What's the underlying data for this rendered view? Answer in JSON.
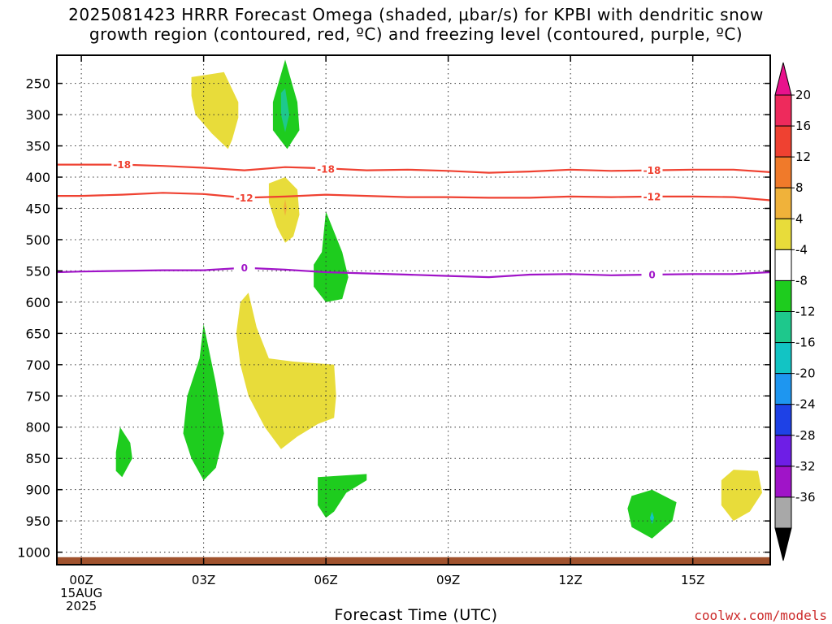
{
  "title": {
    "line1": "2025081423 HRRR Forecast Omega (shaded, μbar/s) for KPBI with dendritic snow",
    "line2": "growth region (contoured, red, ºC) and freezing level (contoured, purple, ºC)"
  },
  "chart_data": {
    "type": "contour",
    "xlabel": "Forecast Time (UTC)",
    "ylabel": "",
    "x_unit": "forecast hour from 2025-08-15 00Z",
    "xlim": [
      -0.6,
      16.9
    ],
    "y_axis": "pressure (hPa), inverted",
    "ylim": [
      1020,
      205
    ],
    "x_ticks": [
      {
        "x": 0,
        "lines": [
          "00Z",
          "15AUG",
          "2025"
        ]
      },
      {
        "x": 3,
        "lines": [
          "03Z"
        ]
      },
      {
        "x": 6,
        "lines": [
          "06Z"
        ]
      },
      {
        "x": 9,
        "lines": [
          "09Z"
        ]
      },
      {
        "x": 12,
        "lines": [
          "12Z"
        ]
      },
      {
        "x": 15,
        "lines": [
          "15Z"
        ]
      }
    ],
    "y_ticks": [
      250,
      300,
      350,
      400,
      450,
      500,
      550,
      600,
      650,
      700,
      750,
      800,
      850,
      900,
      950,
      1000
    ],
    "grid": true,
    "colorbar": {
      "labels": [
        "20",
        "16",
        "12",
        "8",
        "4",
        "-4",
        "-8",
        "-12",
        "-16",
        "-20",
        "-24",
        "-28",
        "-32",
        "-36"
      ],
      "colors": [
        "#ee2a5c",
        "#ef4131",
        "#f07a2a",
        "#f0b23a",
        "#e8dc3a",
        "#ffffff",
        "#1ecc1e",
        "#1ec88c",
        "#12c4c4",
        "#1e96f0",
        "#1e41e6",
        "#6e1ee6",
        "#a014c8",
        "#a8a8a8"
      ],
      "top_triangle_color": "#e8128c",
      "bottom_triangle_color": "#000000"
    },
    "shaded_regions": [
      {
        "color": "#e8dc3a",
        "points": [
          [
            2.7,
            240
          ],
          [
            3.5,
            232
          ],
          [
            3.85,
            280
          ],
          [
            3.85,
            305
          ],
          [
            3.7,
            340
          ],
          [
            3.6,
            355
          ],
          [
            3.2,
            330
          ],
          [
            2.8,
            300
          ],
          [
            2.7,
            270
          ]
        ]
      },
      {
        "color": "#1ecc1e",
        "points": [
          [
            5.0,
            212
          ],
          [
            5.3,
            280
          ],
          [
            5.35,
            325
          ],
          [
            5.05,
            355
          ],
          [
            4.7,
            325
          ],
          [
            4.7,
            280
          ]
        ]
      },
      {
        "color": "#1ec88c",
        "points": [
          [
            5.0,
            258
          ],
          [
            5.1,
            300
          ],
          [
            5.0,
            328
          ],
          [
            4.9,
            300
          ],
          [
            4.9,
            265
          ]
        ]
      },
      {
        "color": "#e8dc3a",
        "points": [
          [
            4.6,
            410
          ],
          [
            5.0,
            400
          ],
          [
            5.3,
            420
          ],
          [
            5.35,
            460
          ],
          [
            5.2,
            495
          ],
          [
            5.0,
            505
          ],
          [
            4.8,
            480
          ],
          [
            4.6,
            440
          ]
        ]
      },
      {
        "color": "#f0b23a",
        "points": [
          [
            5.0,
            435
          ],
          [
            5.04,
            450
          ],
          [
            5.0,
            462
          ],
          [
            4.96,
            450
          ]
        ]
      },
      {
        "color": "#1ecc1e",
        "points": [
          [
            6.0,
            455
          ],
          [
            6.4,
            520
          ],
          [
            6.55,
            560
          ],
          [
            6.4,
            595
          ],
          [
            6.0,
            600
          ],
          [
            5.7,
            575
          ],
          [
            5.7,
            540
          ],
          [
            5.9,
            520
          ]
        ]
      },
      {
        "color": "#e8dc3a",
        "points": [
          [
            3.9,
            600
          ],
          [
            4.1,
            585
          ],
          [
            4.3,
            640
          ],
          [
            4.6,
            690
          ],
          [
            5.2,
            695
          ],
          [
            6.2,
            700
          ],
          [
            6.25,
            750
          ],
          [
            6.2,
            785
          ],
          [
            5.8,
            795
          ],
          [
            5.3,
            815
          ],
          [
            4.9,
            835
          ],
          [
            4.5,
            800
          ],
          [
            4.1,
            750
          ],
          [
            3.9,
            700
          ],
          [
            3.8,
            650
          ]
        ]
      },
      {
        "color": "#1ecc1e",
        "points": [
          [
            3.0,
            635
          ],
          [
            3.3,
            730
          ],
          [
            3.5,
            810
          ],
          [
            3.3,
            865
          ],
          [
            3.0,
            885
          ],
          [
            2.7,
            850
          ],
          [
            2.5,
            810
          ],
          [
            2.6,
            750
          ],
          [
            2.9,
            690
          ]
        ]
      },
      {
        "color": "#1ecc1e",
        "points": [
          [
            0.95,
            800
          ],
          [
            1.2,
            825
          ],
          [
            1.25,
            850
          ],
          [
            1.0,
            880
          ],
          [
            0.85,
            870
          ],
          [
            0.85,
            840
          ]
        ]
      },
      {
        "color": "#1ecc1e",
        "points": [
          [
            5.8,
            880
          ],
          [
            7.0,
            875
          ],
          [
            7.0,
            885
          ],
          [
            6.5,
            905
          ],
          [
            6.2,
            935
          ],
          [
            6.0,
            945
          ],
          [
            5.8,
            925
          ]
        ]
      },
      {
        "color": "#1ecc1e",
        "points": [
          [
            13.5,
            910
          ],
          [
            14.0,
            900
          ],
          [
            14.6,
            920
          ],
          [
            14.5,
            950
          ],
          [
            14.0,
            978
          ],
          [
            13.5,
            960
          ],
          [
            13.4,
            930
          ]
        ]
      },
      {
        "color": "#12c4c4",
        "points": [
          [
            14.0,
            935
          ],
          [
            14.05,
            945
          ],
          [
            14.0,
            955
          ],
          [
            13.95,
            945
          ]
        ]
      },
      {
        "color": "#e8dc3a",
        "points": [
          [
            15.7,
            885
          ],
          [
            16.0,
            868
          ],
          [
            16.6,
            870
          ],
          [
            16.7,
            905
          ],
          [
            16.4,
            935
          ],
          [
            16.0,
            950
          ],
          [
            15.7,
            925
          ]
        ]
      }
    ],
    "contours": [
      {
        "name": "-18",
        "color": "#ef4131",
        "points": [
          [
            -0.6,
            380
          ],
          [
            0,
            380
          ],
          [
            1,
            380
          ],
          [
            2,
            382
          ],
          [
            3,
            385
          ],
          [
            4,
            389
          ],
          [
            5,
            384
          ],
          [
            6,
            386
          ],
          [
            7,
            389
          ],
          [
            8,
            388
          ],
          [
            9,
            390
          ],
          [
            10,
            393
          ],
          [
            11,
            391
          ],
          [
            12,
            388
          ],
          [
            13,
            390
          ],
          [
            14,
            389
          ],
          [
            15,
            388
          ],
          [
            16,
            388
          ],
          [
            16.9,
            392
          ]
        ],
        "labels": [
          [
            1,
            380
          ],
          [
            6,
            387
          ],
          [
            14,
            389
          ]
        ]
      },
      {
        "name": "-12",
        "color": "#ef4131",
        "points": [
          [
            -0.6,
            430
          ],
          [
            0,
            430
          ],
          [
            1,
            428
          ],
          [
            2,
            425
          ],
          [
            3,
            427
          ],
          [
            4,
            433
          ],
          [
            5,
            431
          ],
          [
            6,
            428
          ],
          [
            7,
            430
          ],
          [
            8,
            432
          ],
          [
            9,
            432
          ],
          [
            10,
            433
          ],
          [
            11,
            433
          ],
          [
            12,
            431
          ],
          [
            13,
            432
          ],
          [
            14,
            431
          ],
          [
            15,
            431
          ],
          [
            16,
            432
          ],
          [
            16.9,
            437
          ]
        ],
        "labels": [
          [
            4,
            433
          ],
          [
            14,
            431
          ]
        ]
      },
      {
        "name": "0",
        "color": "#a014c8",
        "points": [
          [
            -0.6,
            552
          ],
          [
            0,
            551
          ],
          [
            1,
            550
          ],
          [
            2,
            549
          ],
          [
            3,
            549
          ],
          [
            4,
            545
          ],
          [
            5,
            548
          ],
          [
            6,
            552
          ],
          [
            7,
            554
          ],
          [
            8,
            556
          ],
          [
            9,
            558
          ],
          [
            10,
            560
          ],
          [
            11,
            556
          ],
          [
            12,
            555
          ],
          [
            13,
            557
          ],
          [
            14,
            556
          ],
          [
            15,
            555
          ],
          [
            16,
            555
          ],
          [
            16.9,
            552
          ]
        ],
        "labels": [
          [
            4,
            545
          ],
          [
            14,
            556
          ]
        ]
      }
    ],
    "ground": {
      "color": "#a0522d",
      "top_pressure": 1008
    }
  },
  "credit": "coolwx.com/models"
}
